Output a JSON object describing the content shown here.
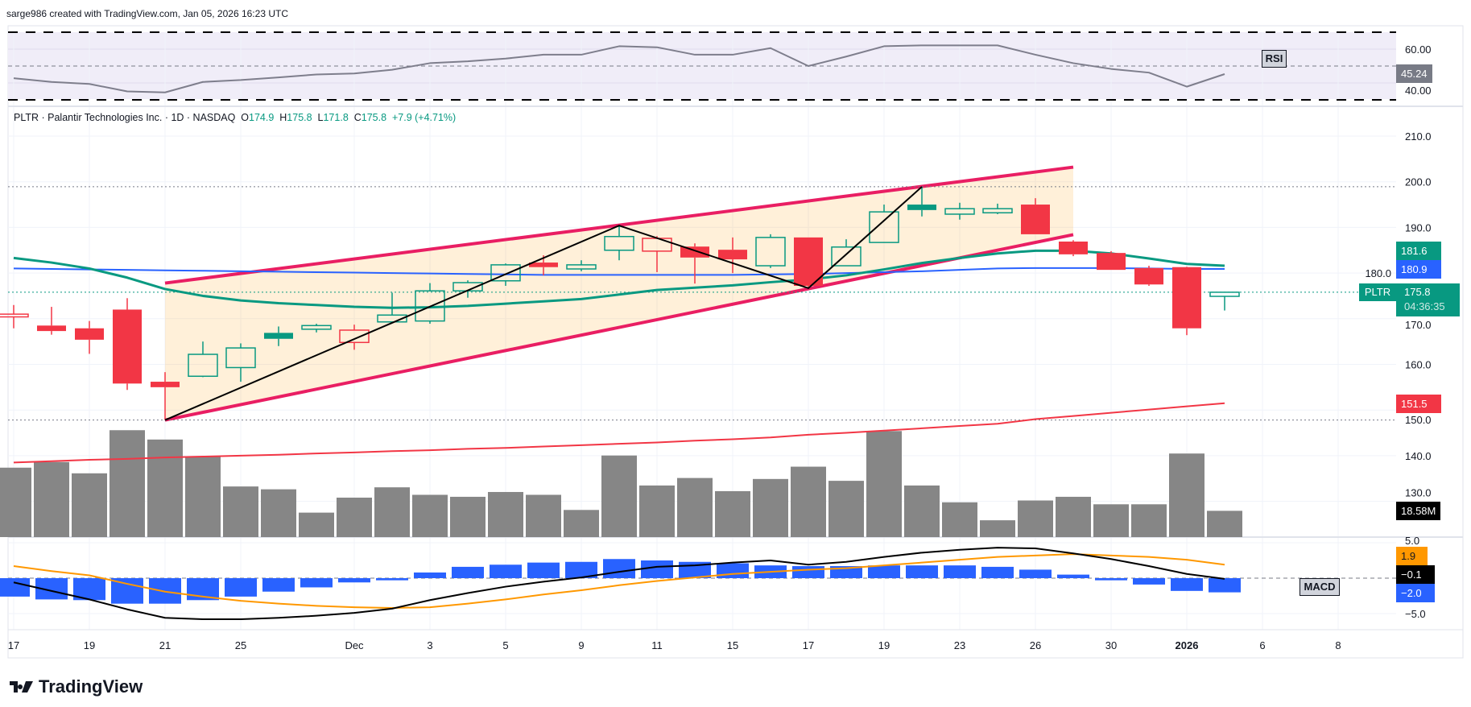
{
  "header": {
    "text": "sarge986 created with TradingView.com, Jan 05, 2026 16:23 UTC"
  },
  "legend": {
    "symbol_info": "PLTR · Palantir Technologies Inc. · 1D · NASDAQ",
    "o_label": "O",
    "o_value": "174.9",
    "h_label": "H",
    "h_value": "175.8",
    "l_label": "L",
    "l_value": "171.8",
    "c_label": "C",
    "c_value": "175.8",
    "change": "+7.9 (+4.71%)"
  },
  "logo": {
    "text": "TradingView"
  },
  "badges": {
    "rsi_tag": "RSI",
    "rsi_value": "45.24",
    "ema_value": "181.6",
    "sma_value": "180.9",
    "symbol_tag": "PLTR",
    "last_price": "175.8",
    "countdown": "04:36:35",
    "sma_long_value": "151.5",
    "volume_value": "18.58M",
    "macd_tag": "MACD",
    "signal_value": "1.9",
    "macd_value": "−0.1",
    "hist_value": "−2.0"
  },
  "colors": {
    "up": "#089981",
    "down": "#f23645",
    "blue": "#2962ff",
    "orange": "#ff9800",
    "channel": "#e91e63",
    "rsi": "#7e7e8c",
    "volume": "#7f7f7f"
  },
  "chart_data": {
    "type": "candlestick",
    "title": "PLTR · Palantir Technologies Inc. · 1D · NASDAQ",
    "price_axis": {
      "ticks": [
        "210.0",
        "200.0",
        "190.0",
        "180.0",
        "170.0",
        "160.0",
        "150.0",
        "140.0",
        "130.0"
      ],
      "range": [
        125,
        215
      ]
    },
    "rsi_axis": {
      "ticks": [
        "60.00",
        "40.00"
      ],
      "bands": [
        70,
        30
      ],
      "mid": 50
    },
    "macd_axis": {
      "ticks": [
        "5.0",
        "−5.0"
      ]
    },
    "x_labels": [
      {
        "bar": 0,
        "label": "17"
      },
      {
        "bar": 2,
        "label": "19"
      },
      {
        "bar": 4,
        "label": "21"
      },
      {
        "bar": 6,
        "label": "25"
      },
      {
        "bar": 9,
        "label": "Dec"
      },
      {
        "bar": 11,
        "label": "3"
      },
      {
        "bar": 13,
        "label": "5"
      },
      {
        "bar": 15,
        "label": "9"
      },
      {
        "bar": 17,
        "label": "11"
      },
      {
        "bar": 19,
        "label": "15"
      },
      {
        "bar": 21,
        "label": "17"
      },
      {
        "bar": 23,
        "label": "19"
      },
      {
        "bar": 25,
        "label": "23"
      },
      {
        "bar": 27,
        "label": "26"
      },
      {
        "bar": 29,
        "label": "30"
      },
      {
        "bar": 31,
        "label": "2026",
        "bold": true
      },
      {
        "bar": 33,
        "label": "6"
      },
      {
        "bar": 35,
        "label": "8"
      }
    ],
    "dates": [
      "Nov 17",
      "Nov 18",
      "Nov 19",
      "Nov 20",
      "Nov 21",
      "Nov 24",
      "Nov 25",
      "Nov 26",
      "Nov 28",
      "Dec 1",
      "Dec 2",
      "Dec 3",
      "Dec 4",
      "Dec 5",
      "Dec 8",
      "Dec 9",
      "Dec 10",
      "Dec 11",
      "Dec 12",
      "Dec 15",
      "Dec 16",
      "Dec 17",
      "Dec 18",
      "Dec 19",
      "Dec 22",
      "Dec 23",
      "Dec 24",
      "Dec 26",
      "Dec 29",
      "Dec 30",
      "Dec 31",
      "Jan 2",
      "Jan 5"
    ],
    "ohlc": [
      [
        170.4,
        173.0,
        167.9,
        171.0
      ],
      [
        168.5,
        172.6,
        166.5,
        167.3
      ],
      [
        167.9,
        169.5,
        162.3,
        165.4
      ],
      [
        172.0,
        174.5,
        154.4,
        155.8
      ],
      [
        156.2,
        158.3,
        147.8,
        155.0
      ],
      [
        157.4,
        165.0,
        157.2,
        162.2
      ],
      [
        159.3,
        164.6,
        156.2,
        163.6
      ],
      [
        166.9,
        168.3,
        164.0,
        165.6
      ],
      [
        167.7,
        168.9,
        167.0,
        168.5
      ],
      [
        164.8,
        168.7,
        163.2,
        167.5
      ],
      [
        169.3,
        175.7,
        169.1,
        170.8
      ],
      [
        169.5,
        177.8,
        168.9,
        176.1
      ],
      [
        176.1,
        178.4,
        174.6,
        177.9
      ],
      [
        178.3,
        182.1,
        177.2,
        181.8
      ],
      [
        182.3,
        183.9,
        179.5,
        181.3
      ],
      [
        180.9,
        182.8,
        180.4,
        181.8
      ],
      [
        185.0,
        190.4,
        182.8,
        188.0
      ],
      [
        184.8,
        188.1,
        180.2,
        187.6
      ],
      [
        185.8,
        186.5,
        177.7,
        183.4
      ],
      [
        185.1,
        187.8,
        180.0,
        183.0
      ],
      [
        181.6,
        188.5,
        181.1,
        187.8
      ],
      [
        187.8,
        187.8,
        176.7,
        177.2
      ],
      [
        181.6,
        187.4,
        181.6,
        185.7
      ],
      [
        186.7,
        195.0,
        186.7,
        193.4
      ],
      [
        195.0,
        198.9,
        192.4,
        193.8
      ],
      [
        192.9,
        195.4,
        191.7,
        194.1
      ],
      [
        193.2,
        195.2,
        192.9,
        194.1
      ],
      [
        195.0,
        196.4,
        188.5,
        188.5
      ],
      [
        186.9,
        187.2,
        183.7,
        184.1
      ],
      [
        184.4,
        184.8,
        180.7,
        180.7
      ],
      [
        181.1,
        181.6,
        177.2,
        177.5
      ],
      [
        181.3,
        181.4,
        166.4,
        167.9
      ],
      [
        174.9,
        175.8,
        171.8,
        175.8
      ]
    ],
    "volume_m": [
      49.1,
      53.1,
      45.1,
      75.6,
      69.0,
      57.1,
      35.8,
      33.8,
      17.3,
      27.9,
      35.2,
      29.9,
      28.5,
      31.9,
      29.9,
      19.2,
      57.7,
      36.5,
      41.8,
      32.5,
      41.1,
      49.8,
      39.8,
      75.0,
      36.5,
      24.6,
      11.9,
      25.9,
      28.5,
      23.2,
      23.2,
      59.1,
      18.58
    ],
    "ema": [
      183.3,
      182.3,
      181.0,
      179.0,
      176.5,
      175.0,
      174.0,
      173.4,
      173.0,
      172.6,
      172.4,
      172.5,
      172.8,
      173.3,
      173.8,
      174.3,
      175.3,
      176.3,
      176.8,
      177.3,
      178.0,
      178.6,
      179.5,
      180.8,
      182.2,
      183.3,
      184.3,
      184.9,
      184.9,
      184.3,
      183.2,
      182.0,
      181.6
    ],
    "sma": [
      181.0,
      180.9,
      180.8,
      180.7,
      180.6,
      180.5,
      180.4,
      180.3,
      180.2,
      180.1,
      180.0,
      179.9,
      179.8,
      179.7,
      179.6,
      179.6,
      179.6,
      179.6,
      179.6,
      179.6,
      179.7,
      179.8,
      180.0,
      180.2,
      180.4,
      180.7,
      181.0,
      181.1,
      181.1,
      181.1,
      181.0,
      180.9,
      180.9
    ],
    "sma_long": [
      138.5,
      138.8,
      139.1,
      139.3,
      139.6,
      139.8,
      140.0,
      140.2,
      140.5,
      140.7,
      141.0,
      141.2,
      141.5,
      141.7,
      142.0,
      142.3,
      142.6,
      142.9,
      143.3,
      143.6,
      144.0,
      144.6,
      145.0,
      145.5,
      146.0,
      146.5,
      147.0,
      148.0,
      148.7,
      149.4,
      150.1,
      150.8,
      151.5
    ],
    "rsi": [
      42.8,
      40.6,
      39.4,
      35.0,
      34.4,
      40.6,
      41.7,
      43.3,
      45.0,
      45.6,
      47.8,
      51.7,
      52.8,
      54.4,
      56.7,
      56.7,
      61.7,
      61.1,
      56.7,
      56.7,
      60.6,
      50.0,
      55.6,
      61.7,
      62.2,
      62.2,
      62.2,
      56.7,
      51.7,
      48.3,
      46.1,
      37.8,
      45.24
    ],
    "macd": [
      -0.6,
      -1.8,
      -3.0,
      -4.4,
      -5.6,
      -5.8,
      -5.8,
      -5.6,
      -5.3,
      -4.9,
      -4.3,
      -3.1,
      -2.1,
      -1.2,
      -0.5,
      0.1,
      0.9,
      1.6,
      1.8,
      2.2,
      2.5,
      1.9,
      2.3,
      3.0,
      3.6,
      4.0,
      4.3,
      4.2,
      3.5,
      2.7,
      1.7,
      0.6,
      -0.1
    ],
    "signal": [
      1.7,
      1.0,
      0.4,
      -0.8,
      -1.9,
      -2.6,
      -3.2,
      -3.6,
      -3.9,
      -4.1,
      -4.2,
      -4.1,
      -3.6,
      -3.0,
      -2.3,
      -1.7,
      -1.0,
      -0.4,
      0.1,
      0.6,
      0.9,
      1.2,
      1.4,
      1.8,
      2.2,
      2.6,
      3.0,
      3.2,
      3.4,
      3.2,
      3.0,
      2.6,
      1.9
    ],
    "histogram": [
      -2.6,
      -3.0,
      -3.1,
      -3.6,
      -3.6,
      -3.1,
      -2.6,
      -1.9,
      -1.3,
      -0.6,
      -0.3,
      0.8,
      1.6,
      1.9,
      2.2,
      2.3,
      2.7,
      2.5,
      2.3,
      2.1,
      1.8,
      1.7,
      1.7,
      1.8,
      1.8,
      1.8,
      1.6,
      1.2,
      0.5,
      -0.3,
      -0.9,
      -1.8,
      -2.0
    ],
    "channel": {
      "upper": [
        [
          4,
          177.8
        ],
        [
          28,
          203.2
        ]
      ],
      "lower": [
        [
          4,
          147.8
        ],
        [
          28,
          188.4
        ]
      ]
    },
    "zigzag": [
      [
        4,
        147.8
      ],
      [
        16,
        190.4
      ],
      [
        21,
        176.7
      ],
      [
        24,
        198.9
      ]
    ],
    "price_lines": {
      "high": 198.9,
      "low": 147.8,
      "last": 175.8
    }
  }
}
